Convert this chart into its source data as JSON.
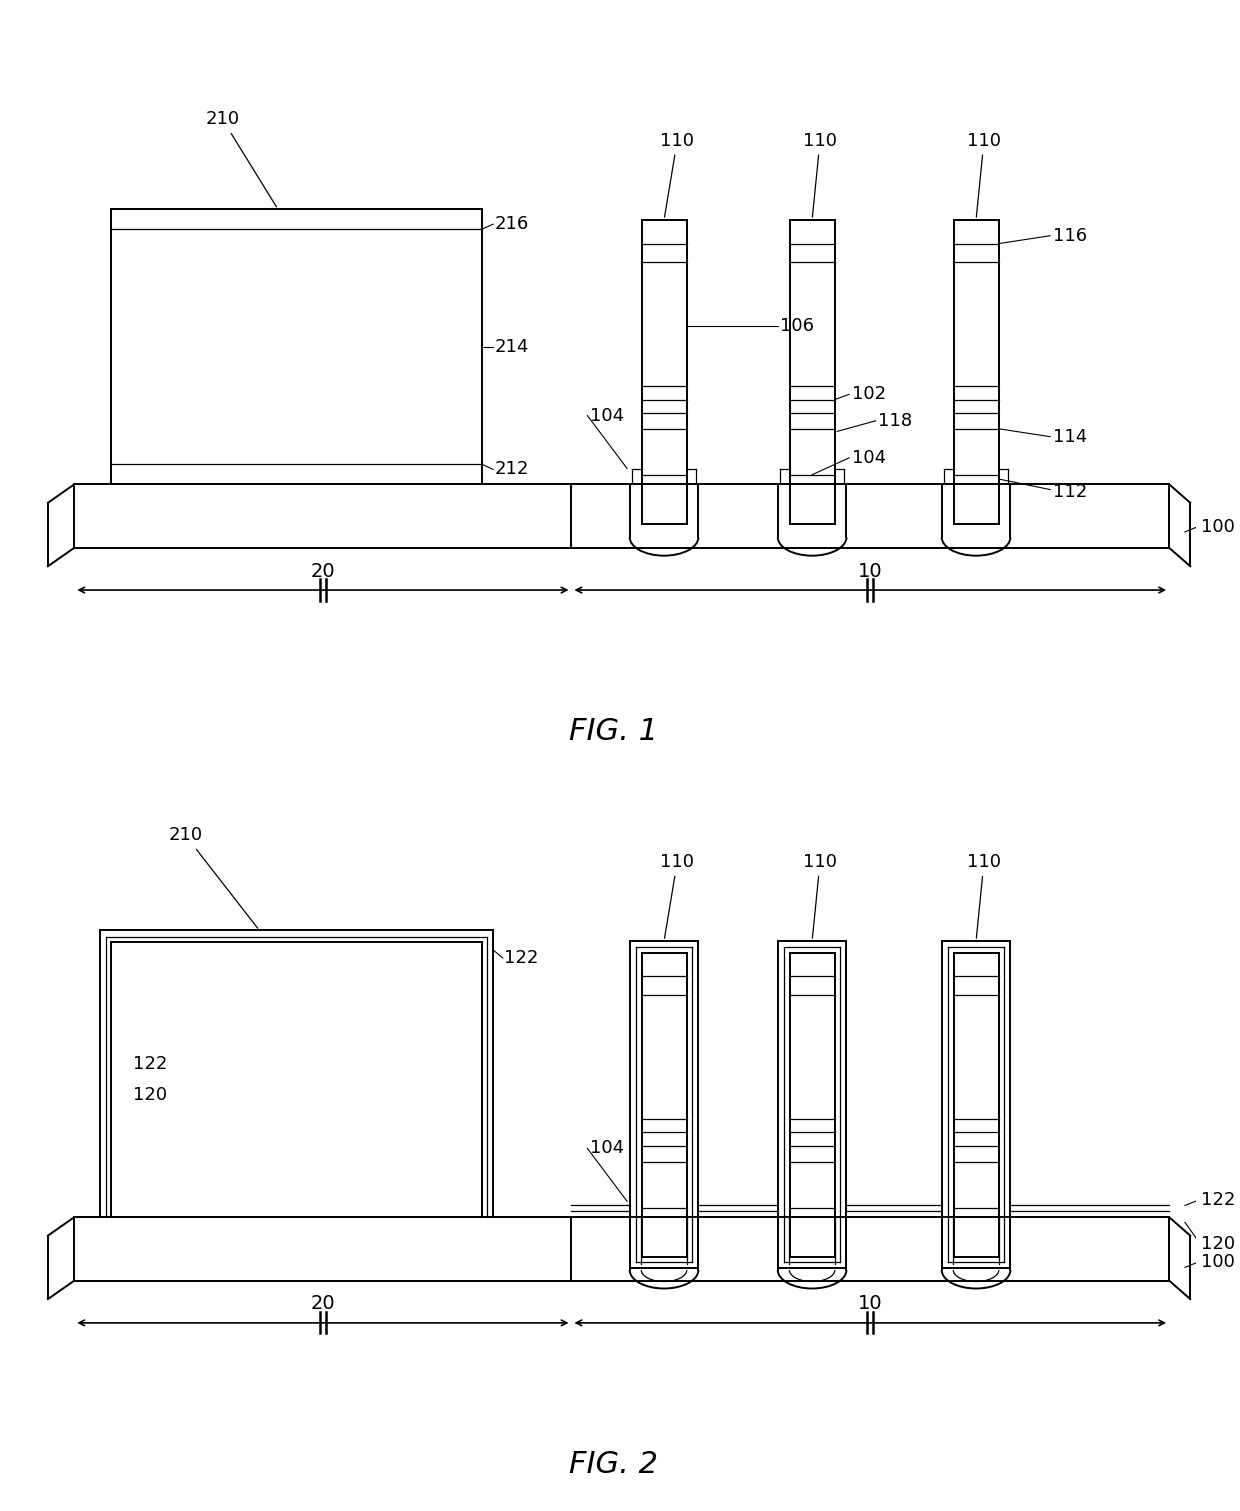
{
  "fig_width": 12.4,
  "fig_height": 15.11,
  "dpi": 100,
  "bg_color": "#ffffff",
  "lc": "#000000",
  "lw": 1.4,
  "tlw": 0.9,
  "fs": 13,
  "title_fs": 22
}
